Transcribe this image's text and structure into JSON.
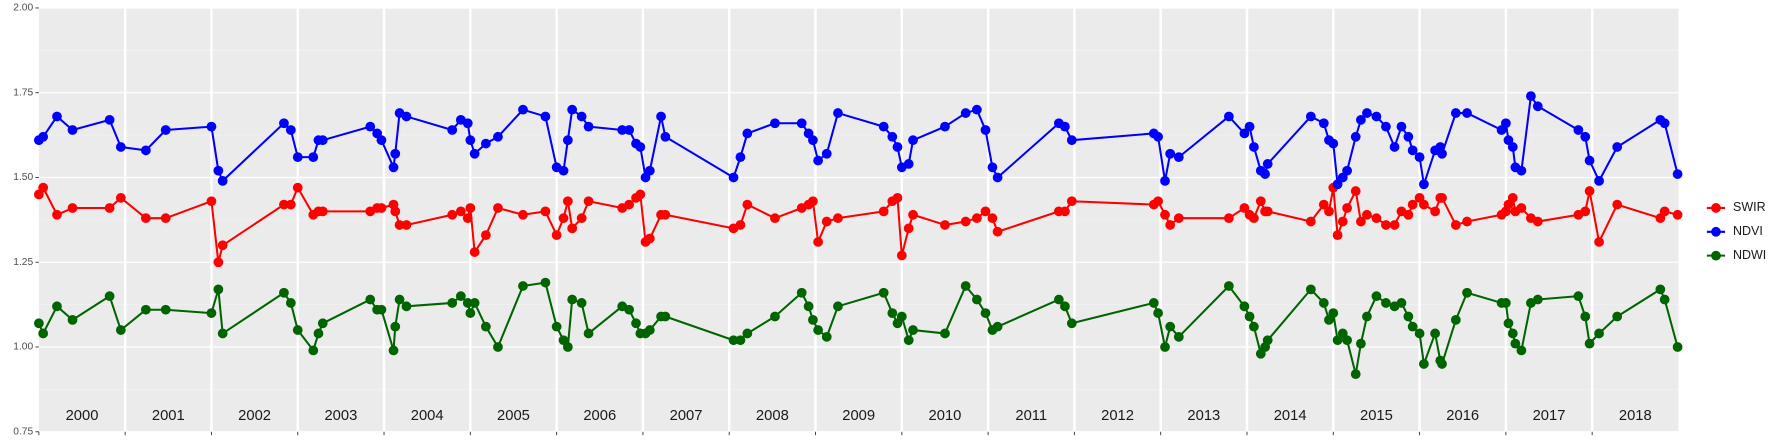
{
  "chart_data": {
    "type": "line",
    "x": [
      2000,
      2000.05,
      2000.21,
      2000.39,
      2000.82,
      2000.95,
      2001.24,
      2001.47,
      2002,
      2002.08,
      2002.13,
      2002.84,
      2002.92,
      2003,
      2003.18,
      2003.24,
      2003.29,
      2003.84,
      2003.92,
      2003.97,
      2004.11,
      2004.13,
      2004.18,
      2004.26,
      2004.79,
      2004.89,
      2004.97,
      2005,
      2005.05,
      2005.18,
      2005.32,
      2005.61,
      2005.87,
      2006,
      2006.08,
      2006.13,
      2006.18,
      2006.29,
      2006.37,
      2006.76,
      2006.84,
      2006.92,
      2006.97,
      2007.03,
      2007.08,
      2007.21,
      2007.26,
      2008.05,
      2008.13,
      2008.21,
      2008.53,
      2008.84,
      2008.92,
      2008.97,
      2009.03,
      2009.13,
      2009.26,
      2009.79,
      2009.89,
      2009.95,
      2010,
      2010.08,
      2010.13,
      2010.5,
      2010.74,
      2010.87,
      2010.97,
      2011.05,
      2011.11,
      2011.82,
      2011.89,
      2011.97,
      2012.92,
      2012.97,
      2013.05,
      2013.11,
      2013.21,
      2013.79,
      2013.97,
      2014.03,
      2014.08,
      2014.16,
      2014.21,
      2014.24,
      2014.74,
      2014.89,
      2014.95,
      2015,
      2015.05,
      2015.11,
      2015.16,
      2015.26,
      2015.32,
      2015.39,
      2015.5,
      2015.61,
      2015.71,
      2015.79,
      2015.87,
      2015.92,
      2016,
      2016.05,
      2016.18,
      2016.24,
      2016.26,
      2016.42,
      2016.55,
      2016.95,
      2017,
      2017.03,
      2017.08,
      2017.11,
      2017.18,
      2017.29,
      2017.37,
      2017.84,
      2017.92,
      2017.97,
      2018.08,
      2018.29,
      2018.79,
      2018.84,
      2018.99
    ],
    "series": [
      {
        "name": "SWIR",
        "color": "#ff0000",
        "values": [
          1.45,
          1.47,
          1.39,
          1.41,
          1.41,
          1.44,
          1.38,
          1.38,
          1.43,
          1.25,
          1.3,
          1.42,
          1.42,
          1.47,
          1.39,
          1.4,
          1.4,
          1.4,
          1.41,
          1.41,
          1.42,
          1.4,
          1.36,
          1.36,
          1.39,
          1.4,
          1.38,
          1.41,
          1.28,
          1.33,
          1.41,
          1.39,
          1.4,
          1.33,
          1.38,
          1.43,
          1.35,
          1.38,
          1.43,
          1.41,
          1.42,
          1.44,
          1.45,
          1.31,
          1.32,
          1.39,
          1.39,
          1.35,
          1.36,
          1.42,
          1.38,
          1.41,
          1.42,
          1.43,
          1.31,
          1.37,
          1.38,
          1.4,
          1.43,
          1.44,
          1.27,
          1.35,
          1.39,
          1.36,
          1.37,
          1.38,
          1.4,
          1.38,
          1.34,
          1.4,
          1.4,
          1.43,
          1.42,
          1.43,
          1.39,
          1.36,
          1.38,
          1.38,
          1.41,
          1.39,
          1.38,
          1.43,
          1.4,
          1.4,
          1.37,
          1.42,
          1.4,
          1.47,
          1.33,
          1.37,
          1.41,
          1.46,
          1.37,
          1.39,
          1.38,
          1.36,
          1.36,
          1.4,
          1.39,
          1.42,
          1.44,
          1.42,
          1.4,
          1.44,
          1.44,
          1.36,
          1.37,
          1.39,
          1.4,
          1.42,
          1.44,
          1.4,
          1.41,
          1.38,
          1.37,
          1.39,
          1.4,
          1.46,
          1.31,
          1.42,
          1.38,
          1.4,
          1.39
        ]
      },
      {
        "name": "NDVI",
        "color": "#0000ff",
        "values": [
          1.61,
          1.62,
          1.68,
          1.64,
          1.67,
          1.59,
          1.58,
          1.64,
          1.65,
          1.52,
          1.49,
          1.66,
          1.64,
          1.56,
          1.56,
          1.61,
          1.61,
          1.65,
          1.63,
          1.61,
          1.53,
          1.57,
          1.69,
          1.68,
          1.64,
          1.67,
          1.66,
          1.61,
          1.57,
          1.6,
          1.62,
          1.7,
          1.68,
          1.53,
          1.52,
          1.61,
          1.7,
          1.68,
          1.65,
          1.64,
          1.64,
          1.6,
          1.59,
          1.5,
          1.52,
          1.68,
          1.62,
          1.5,
          1.56,
          1.63,
          1.66,
          1.66,
          1.63,
          1.61,
          1.55,
          1.57,
          1.69,
          1.65,
          1.62,
          1.59,
          1.53,
          1.54,
          1.61,
          1.65,
          1.69,
          1.7,
          1.64,
          1.53,
          1.5,
          1.66,
          1.65,
          1.61,
          1.63,
          1.62,
          1.49,
          1.57,
          1.56,
          1.68,
          1.63,
          1.65,
          1.59,
          1.52,
          1.51,
          1.54,
          1.68,
          1.66,
          1.61,
          1.6,
          1.48,
          1.5,
          1.52,
          1.62,
          1.67,
          1.69,
          1.68,
          1.65,
          1.59,
          1.65,
          1.62,
          1.58,
          1.56,
          1.48,
          1.58,
          1.59,
          1.57,
          1.69,
          1.69,
          1.64,
          1.66,
          1.61,
          1.59,
          1.53,
          1.52,
          1.74,
          1.71,
          1.64,
          1.62,
          1.55,
          1.49,
          1.59,
          1.67,
          1.66,
          1.51
        ]
      },
      {
        "name": "NDWI",
        "color": "#006400",
        "values": [
          1.07,
          1.04,
          1.12,
          1.08,
          1.15,
          1.05,
          1.11,
          1.11,
          1.1,
          1.17,
          1.04,
          1.16,
          1.13,
          1.05,
          0.99,
          1.04,
          1.07,
          1.14,
          1.11,
          1.11,
          0.99,
          1.06,
          1.14,
          1.12,
          1.13,
          1.15,
          1.13,
          1.1,
          1.13,
          1.06,
          1,
          1.18,
          1.19,
          1.06,
          1.02,
          1,
          1.14,
          1.13,
          1.04,
          1.12,
          1.11,
          1.07,
          1.04,
          1.04,
          1.05,
          1.09,
          1.09,
          1.02,
          1.02,
          1.04,
          1.09,
          1.16,
          1.12,
          1.08,
          1.05,
          1.03,
          1.12,
          1.16,
          1.1,
          1.07,
          1.09,
          1.02,
          1.05,
          1.04,
          1.18,
          1.14,
          1.1,
          1.05,
          1.06,
          1.14,
          1.12,
          1.07,
          1.13,
          1.1,
          1,
          1.06,
          1.03,
          1.18,
          1.12,
          1.09,
          1.06,
          0.98,
          1,
          1.02,
          1.17,
          1.13,
          1.08,
          1.1,
          1.02,
          1.04,
          1.02,
          0.92,
          1.01,
          1.09,
          1.15,
          1.13,
          1.12,
          1.13,
          1.09,
          1.06,
          1.04,
          0.95,
          1.04,
          0.96,
          0.95,
          1.08,
          1.16,
          1.13,
          1.13,
          1.07,
          1.04,
          1.01,
          0.99,
          1.13,
          1.14,
          1.15,
          1.09,
          1.01,
          1.04,
          1.09,
          1.17,
          1.14,
          1
        ]
      }
    ],
    "xlim": [
      2000,
      2019
    ],
    "xticks": [
      {
        "value": 2000.5,
        "label": "2000"
      },
      {
        "value": 2001.5,
        "label": "2001"
      },
      {
        "value": 2002.5,
        "label": "2002"
      },
      {
        "value": 2003.5,
        "label": "2003"
      },
      {
        "value": 2004.5,
        "label": "2004"
      },
      {
        "value": 2005.5,
        "label": "2005"
      },
      {
        "value": 2006.5,
        "label": "2006"
      },
      {
        "value": 2007.5,
        "label": "2007"
      },
      {
        "value": 2008.5,
        "label": "2008"
      },
      {
        "value": 2009.5,
        "label": "2009"
      },
      {
        "value": 2010.5,
        "label": "2010"
      },
      {
        "value": 2011.5,
        "label": "2011"
      },
      {
        "value": 2012.5,
        "label": "2012"
      },
      {
        "value": 2013.5,
        "label": "2013"
      },
      {
        "value": 2014.5,
        "label": "2014"
      },
      {
        "value": 2015.5,
        "label": "2015"
      },
      {
        "value": 2016.5,
        "label": "2016"
      },
      {
        "value": 2017.5,
        "label": "2017"
      },
      {
        "value": 2018.5,
        "label": "2018"
      }
    ],
    "ylim": [
      0.75,
      2
    ],
    "yticks": [
      {
        "value": 0.75,
        "label": "0.75"
      },
      {
        "value": 1,
        "label": "1.00"
      },
      {
        "value": 1.25,
        "label": "1.25"
      },
      {
        "value": 1.5,
        "label": "1.50"
      },
      {
        "value": 1.75,
        "label": "1.75"
      },
      {
        "value": 2,
        "label": "2.00"
      }
    ],
    "grid": true,
    "legend_position": "right"
  }
}
